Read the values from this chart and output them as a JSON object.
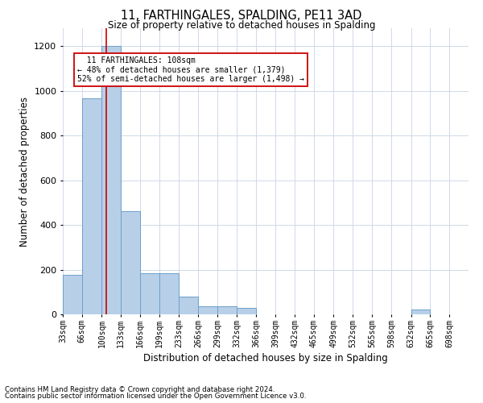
{
  "title": "11, FARTHINGALES, SPALDING, PE11 3AD",
  "subtitle": "Size of property relative to detached houses in Spalding",
  "xlabel": "Distribution of detached houses by size in Spalding",
  "ylabel": "Number of detached properties",
  "footnote1": "Contains HM Land Registry data © Crown copyright and database right 2024.",
  "footnote2": "Contains public sector information licensed under the Open Government Licence v3.0.",
  "annotation_title": "11 FARTHINGALES: 108sqm",
  "annotation_line1": "← 48% of detached houses are smaller (1,379)",
  "annotation_line2": "52% of semi-detached houses are larger (1,498) →",
  "bar_color": "#b8cfe8",
  "bar_edge_color": "#6aa0cc",
  "vline_color": "#cc0000",
  "annotation_box_color": "#ffffff",
  "annotation_box_edge": "#cc0000",
  "property_size_sqm": 108,
  "bin_left_edges": [
    33,
    66,
    100,
    133,
    166,
    199,
    233,
    266,
    299,
    332,
    366,
    399,
    432,
    465,
    499,
    532,
    565,
    598,
    632,
    665
  ],
  "bin_labels": [
    "33sqm",
    "66sqm",
    "100sqm",
    "133sqm",
    "166sqm",
    "199sqm",
    "233sqm",
    "266sqm",
    "299sqm",
    "332sqm",
    "366sqm",
    "399sqm",
    "432sqm",
    "465sqm",
    "499sqm",
    "532sqm",
    "565sqm",
    "598sqm",
    "632sqm",
    "665sqm",
    "698sqm"
  ],
  "bar_heights": [
    175,
    965,
    1200,
    460,
    185,
    185,
    80,
    35,
    35,
    30,
    0,
    0,
    0,
    0,
    0,
    0,
    0,
    0,
    20,
    0
  ],
  "ylim": [
    0,
    1280
  ],
  "yticks": [
    0,
    200,
    400,
    600,
    800,
    1000,
    1200
  ],
  "xlim": [
    33,
    731
  ],
  "background_color": "#ffffff",
  "grid_color": "#d0d8e8"
}
